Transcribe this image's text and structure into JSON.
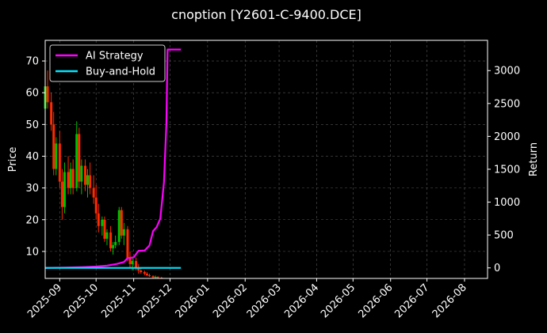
{
  "chart_data": {
    "type": "line",
    "title": "cnoption [Y2601-C-9400.DCE]",
    "ylabel_left": "Price",
    "ylabel_right": "Return",
    "grid": true,
    "legend_placement": "top-left",
    "colors": {
      "background": "#000000",
      "strategy": "#ff00ff",
      "buyhold": "#00e5ff",
      "candle_up": "#00c000",
      "candle_down": "#ff2a00",
      "grid": "#555555",
      "axes": "#ffffff"
    },
    "x_ticks": [
      "2025-09",
      "2025-10",
      "2025-11",
      "2025-12",
      "2026-01",
      "2026-02",
      "2026-03",
      "2026-04",
      "2026-05",
      "2026-06",
      "2026-07",
      "2026-08"
    ],
    "x_range": [
      "2025-08-20",
      "2026-08-20"
    ],
    "left_axis": {
      "range": [
        1.5,
        76.5
      ],
      "ticks": [
        10,
        20,
        30,
        40,
        50,
        60,
        70
      ]
    },
    "right_axis": {
      "range": [
        -160,
        3460
      ],
      "ticks": [
        0,
        500,
        1000,
        1500,
        2000,
        2500,
        3000
      ]
    },
    "series": [
      {
        "name": "AI Strategy",
        "axis": "right",
        "points": [
          [
            "2025-08-20",
            0
          ],
          [
            "2025-09-05",
            5
          ],
          [
            "2025-09-20",
            12
          ],
          [
            "2025-10-01",
            20
          ],
          [
            "2025-10-10",
            35
          ],
          [
            "2025-10-18",
            60
          ],
          [
            "2025-10-24",
            90
          ],
          [
            "2025-10-27",
            150
          ],
          [
            "2025-11-01",
            160
          ],
          [
            "2025-11-05",
            260
          ],
          [
            "2025-11-10",
            265
          ],
          [
            "2025-11-14",
            340
          ],
          [
            "2025-11-17",
            560
          ],
          [
            "2025-11-20",
            620
          ],
          [
            "2025-11-23",
            750
          ],
          [
            "2025-11-26",
            1300
          ],
          [
            "2025-11-28",
            2200
          ],
          [
            "2025-11-29",
            3320
          ],
          [
            "2025-12-10",
            3320
          ]
        ]
      },
      {
        "name": "Buy-and-Hold",
        "axis": "right",
        "points": [
          [
            "2025-08-20",
            0
          ],
          [
            "2025-12-10",
            0
          ]
        ]
      }
    ],
    "candles": [
      [
        "2025-08-20",
        55,
        72,
        50,
        62
      ],
      [
        "2025-08-22",
        62,
        67,
        55,
        57
      ],
      [
        "2025-08-25",
        57,
        60,
        48,
        50
      ],
      [
        "2025-08-27",
        50,
        54,
        34,
        36
      ],
      [
        "2025-08-29",
        36,
        46,
        34,
        44
      ],
      [
        "2025-09-01",
        44,
        48,
        30,
        32
      ],
      [
        "2025-09-03",
        32,
        36,
        20,
        24
      ],
      [
        "2025-09-05",
        24,
        38,
        22,
        35
      ],
      [
        "2025-09-08",
        35,
        40,
        28,
        30
      ],
      [
        "2025-09-10",
        30,
        38,
        28,
        36
      ],
      [
        "2025-09-12",
        36,
        39,
        28,
        30
      ],
      [
        "2025-09-15",
        30,
        51,
        29,
        47
      ],
      [
        "2025-09-17",
        47,
        49,
        30,
        32
      ],
      [
        "2025-09-19",
        32,
        39,
        28,
        37
      ],
      [
        "2025-09-22",
        37,
        39,
        29,
        31
      ],
      [
        "2025-09-24",
        31,
        36,
        27,
        34
      ],
      [
        "2025-09-26",
        34,
        38,
        28,
        30
      ],
      [
        "2025-09-29",
        30,
        34,
        25,
        27
      ],
      [
        "2025-10-01",
        27,
        31,
        20,
        22
      ],
      [
        "2025-10-03",
        22,
        25,
        16,
        18
      ],
      [
        "2025-10-06",
        18,
        21,
        15,
        20
      ],
      [
        "2025-10-08",
        20,
        21,
        13,
        14
      ],
      [
        "2025-10-10",
        14,
        17,
        12,
        16
      ],
      [
        "2025-10-13",
        16,
        18,
        10,
        11
      ],
      [
        "2025-10-15",
        11,
        13,
        9,
        12
      ],
      [
        "2025-10-17",
        12,
        15,
        11,
        13
      ],
      [
        "2025-10-20",
        13,
        24,
        12,
        23
      ],
      [
        "2025-10-22",
        23,
        24,
        14,
        15
      ],
      [
        "2025-10-24",
        15,
        19,
        12,
        17
      ],
      [
        "2025-10-27",
        17,
        18,
        7,
        8
      ],
      [
        "2025-10-29",
        8,
        10,
        5,
        6
      ],
      [
        "2025-10-31",
        6,
        8,
        4,
        7
      ],
      [
        "2025-11-03",
        7,
        8,
        4,
        5
      ],
      [
        "2025-11-05",
        5,
        6,
        3,
        4
      ],
      [
        "2025-11-07",
        4,
        5,
        3,
        3.5
      ],
      [
        "2025-11-10",
        3.5,
        4,
        2.5,
        3
      ],
      [
        "2025-11-12",
        3,
        3.5,
        2.2,
        2.5
      ],
      [
        "2025-11-14",
        2.5,
        3,
        2,
        2.2
      ],
      [
        "2025-11-17",
        2.2,
        2.5,
        1.6,
        1.8
      ],
      [
        "2025-11-19",
        1.8,
        2.4,
        1.5,
        2
      ],
      [
        "2025-11-21",
        2,
        2.2,
        1.5,
        1.7
      ],
      [
        "2025-11-24",
        1.7,
        2,
        1.5,
        1.6
      ]
    ]
  }
}
